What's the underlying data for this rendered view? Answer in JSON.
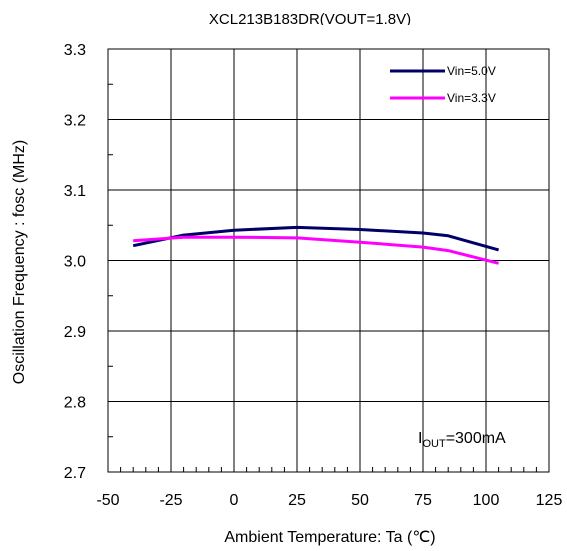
{
  "chart_data": {
    "type": "line",
    "title": "XCL213B183DR(VOUT=1.8V)",
    "xlabel": "Ambient Temperature: Ta (℃)",
    "ylabel": "Oscillation Frequency : fosc (MHz)",
    "xlim": [
      -50,
      125
    ],
    "ylim": [
      2.7,
      3.3
    ],
    "x_ticks": [
      "-50",
      "-25",
      "0",
      "25",
      "50",
      "75",
      "100",
      "125"
    ],
    "y_ticks": [
      "2.7",
      "2.8",
      "2.9",
      "3.0",
      "3.1",
      "3.2",
      "3.3"
    ],
    "grid": true,
    "legend_position": "top-right",
    "annotation": {
      "main": "I",
      "sub": "OUT",
      "rest": "=300mA"
    },
    "series": [
      {
        "name": "Vin=5.0V",
        "color": "#000066",
        "points": [
          [
            -40,
            3.021
          ],
          [
            -20,
            3.036
          ],
          [
            0,
            3.043
          ],
          [
            25,
            3.047
          ],
          [
            50,
            3.044
          ],
          [
            75,
            3.039
          ],
          [
            85,
            3.035
          ],
          [
            105,
            3.015
          ]
        ]
      },
      {
        "name": "Vin=3.3V",
        "color": "#ff00ff",
        "points": [
          [
            -40,
            3.028
          ],
          [
            -20,
            3.033
          ],
          [
            0,
            3.033
          ],
          [
            25,
            3.032
          ],
          [
            50,
            3.026
          ],
          [
            75,
            3.019
          ],
          [
            85,
            3.014
          ],
          [
            105,
            2.996
          ]
        ]
      }
    ]
  }
}
